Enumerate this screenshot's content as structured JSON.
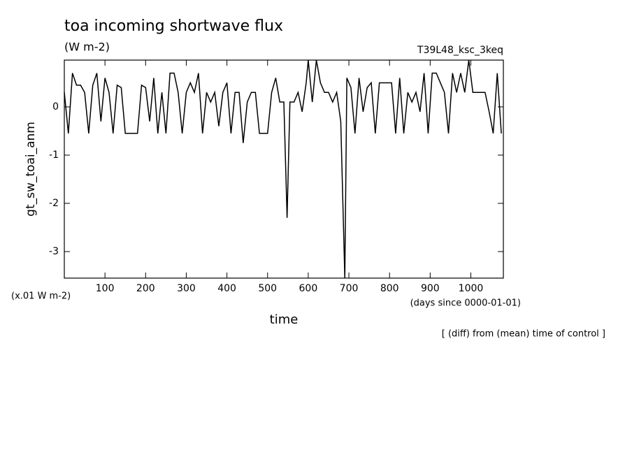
{
  "chart_data": {
    "type": "line",
    "title": "toa incoming shortwave flux",
    "subtitle": "(W m-2)",
    "run_label": "T39L48_ksc_3keq",
    "y_label": "gt_sw_toai_anm",
    "y_unit": "(x.01 W m-2)",
    "x_label": "time",
    "x_unit": "(days since 0000-01-01)",
    "note": "[ (diff) from (mean) time of control ]",
    "color": "#000000",
    "xlim": [
      0,
      1080
    ],
    "xticks": [
      100,
      200,
      300,
      400,
      500,
      600,
      700,
      800,
      900,
      1000
    ],
    "ylim": [
      -3.55,
      0.97
    ],
    "yticks": [
      -3,
      -2,
      -1,
      0
    ],
    "x": [
      0,
      10,
      20,
      30,
      40,
      50,
      60,
      70,
      80,
      90,
      100,
      110,
      120,
      130,
      140,
      150,
      160,
      170,
      180,
      190,
      200,
      210,
      220,
      230,
      240,
      250,
      260,
      270,
      280,
      290,
      300,
      310,
      320,
      330,
      340,
      350,
      360,
      370,
      380,
      390,
      400,
      410,
      420,
      430,
      440,
      450,
      460,
      470,
      480,
      490,
      500,
      510,
      520,
      530,
      540,
      548,
      555,
      565,
      575,
      585,
      595,
      600,
      610,
      620,
      630,
      640,
      650,
      660,
      670,
      680,
      690,
      695,
      705,
      715,
      725,
      735,
      745,
      755,
      765,
      775,
      785,
      795,
      805,
      815,
      825,
      835,
      845,
      855,
      865,
      875,
      885,
      895,
      905,
      915,
      925,
      935,
      945,
      955,
      965,
      975,
      985,
      995,
      1005,
      1015,
      1025,
      1035,
      1045,
      1055,
      1065,
      1075
    ],
    "values": [
      0.3,
      -0.55,
      0.7,
      0.45,
      0.45,
      0.3,
      -0.55,
      0.45,
      0.7,
      -0.3,
      0.6,
      0.3,
      -0.55,
      0.45,
      0.4,
      -0.55,
      -0.55,
      -0.55,
      -0.55,
      0.45,
      0.4,
      -0.3,
      0.6,
      -0.55,
      0.3,
      -0.55,
      0.7,
      0.7,
      0.3,
      -0.55,
      0.3,
      0.5,
      0.3,
      0.7,
      -0.55,
      0.3,
      0.1,
      0.3,
      -0.4,
      0.3,
      0.5,
      -0.55,
      0.3,
      0.3,
      -0.75,
      0.1,
      0.3,
      0.3,
      -0.55,
      -0.55,
      -0.55,
      0.3,
      0.6,
      0.1,
      0.1,
      -2.3,
      0.1,
      0.1,
      0.3,
      -0.1,
      0.5,
      0.97,
      0.1,
      0.97,
      0.5,
      0.3,
      0.3,
      0.1,
      0.3,
      -0.3,
      -3.55,
      0.6,
      0.4,
      -0.55,
      0.6,
      -0.1,
      0.4,
      0.5,
      -0.55,
      0.5,
      0.5,
      0.5,
      0.5,
      -0.55,
      0.6,
      -0.55,
      0.3,
      0.1,
      0.3,
      -0.1,
      0.7,
      -0.55,
      0.7,
      0.7,
      0.5,
      0.3,
      -0.55,
      0.7,
      0.3,
      0.7,
      0.3,
      0.97,
      0.3,
      0.3,
      0.3,
      0.3,
      -0.1,
      -0.55,
      0.7,
      -0.55
    ]
  }
}
